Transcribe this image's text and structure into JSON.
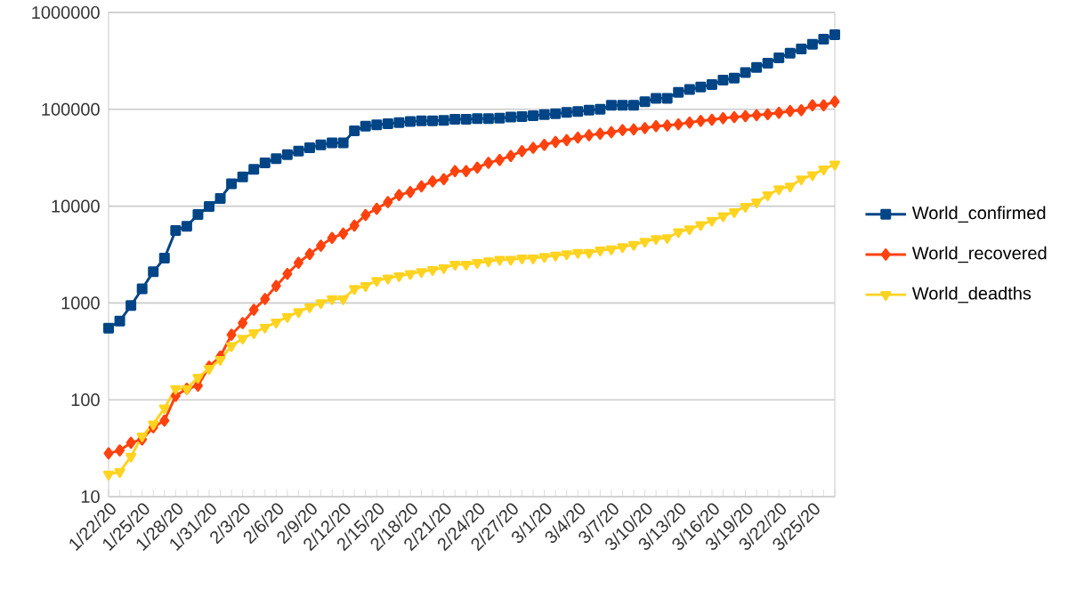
{
  "chart_data": {
    "type": "line",
    "categories": [
      "1/22/20",
      null,
      null,
      "1/25/20",
      null,
      null,
      "1/28/20",
      null,
      null,
      "1/31/20",
      null,
      null,
      "2/3/20",
      null,
      null,
      "2/6/20",
      null,
      null,
      "2/9/20",
      null,
      null,
      "2/12/20",
      null,
      null,
      "2/15/20",
      null,
      null,
      "2/18/20",
      null,
      null,
      "2/21/20",
      null,
      null,
      "2/24/20",
      null,
      null,
      "2/27/20",
      null,
      null,
      "3/1/20",
      null,
      null,
      "3/4/20",
      null,
      null,
      "3/7/20",
      null,
      null,
      "3/10/20",
      null,
      null,
      "3/13/20",
      null,
      null,
      "3/16/20",
      null,
      null,
      "3/19/20",
      null,
      null,
      "3/22/20",
      null,
      null,
      "3/25/20",
      null,
      null
    ],
    "series": [
      {
        "name": "World_confirmed",
        "color": "#004586",
        "marker": "square",
        "values": [
          550,
          650,
          940,
          1400,
          2100,
          2900,
          5600,
          6200,
          8200,
          9900,
          12000,
          17000,
          20000,
          24000,
          28000,
          31000,
          34000,
          37000,
          40000,
          43000,
          45000,
          45000,
          60000,
          67000,
          69000,
          71000,
          73000,
          75000,
          76000,
          76000,
          77000,
          79000,
          79000,
          80000,
          80000,
          81000,
          83000,
          84000,
          86000,
          88000,
          90000,
          93000,
          95000,
          98000,
          100000,
          110000,
          110000,
          110000,
          120000,
          130000,
          130000,
          150000,
          160000,
          170000,
          180000,
          200000,
          210000,
          240000,
          270000,
          300000,
          340000,
          380000,
          420000,
          470000,
          530000,
          590000
        ]
      },
      {
        "name": "World_recovered",
        "color": "#ff420e",
        "marker": "diamond",
        "values": [
          28,
          30,
          36,
          39,
          52,
          61,
          110,
          130,
          140,
          220,
          280,
          470,
          620,
          850,
          1100,
          1500,
          2000,
          2600,
          3200,
          3900,
          4700,
          5200,
          6300,
          8100,
          9400,
          11000,
          13000,
          14000,
          16000,
          18000,
          19000,
          23000,
          23000,
          25000,
          28000,
          30000,
          33000,
          37000,
          40000,
          43000,
          46000,
          48000,
          51000,
          54000,
          56000,
          58000,
          61000,
          62000,
          64000,
          67000,
          68000,
          70000,
          73000,
          76000,
          78000,
          81000,
          83000,
          85000,
          87000,
          89000,
          92000,
          96000,
          98000,
          110000,
          110000,
          120000
        ]
      },
      {
        "name": "World_deadths",
        "color": "#ffd320",
        "marker": "triangle",
        "values": [
          17,
          18,
          26,
          42,
          56,
          82,
          130,
          130,
          170,
          210,
          260,
          360,
          430,
          490,
          560,
          630,
          720,
          810,
          910,
          1000,
          1100,
          1100,
          1400,
          1500,
          1700,
          1800,
          1900,
          2000,
          2100,
          2200,
          2300,
          2500,
          2500,
          2600,
          2700,
          2800,
          2800,
          2900,
          2900,
          3000,
          3100,
          3200,
          3300,
          3300,
          3500,
          3600,
          3800,
          4000,
          4300,
          4600,
          4700,
          5400,
          5800,
          6400,
          7100,
          7900,
          8700,
          9900,
          11000,
          13000,
          15000,
          16000,
          19000,
          21000,
          24000,
          27000
        ]
      }
    ],
    "log": "y",
    "ylim": [
      10,
      1000000
    ],
    "yticks": [
      10,
      100,
      1000,
      10000,
      100000,
      1000000
    ],
    "grid": "y",
    "legend": "right"
  }
}
